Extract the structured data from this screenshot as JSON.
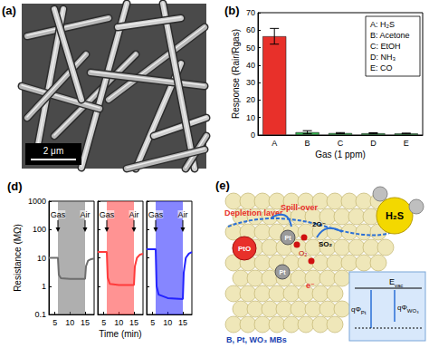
{
  "chart_data": [
    {
      "type": "bar",
      "title": "(b)",
      "categories": [
        "A",
        "B",
        "C",
        "D",
        "E"
      ],
      "values": [
        56.5,
        1.6,
        1.1,
        1.0,
        0.9
      ],
      "errors": [
        4.5,
        0.9,
        0.3,
        0.3,
        0.2
      ],
      "colors": [
        "#e8302a",
        "#2fb34a",
        "#2fb34a",
        "#2fb34a",
        "#2fb34a"
      ],
      "x_label": "Gas (1 ppm)",
      "y_label": "Response (Rair/Rgas)",
      "ylim": [
        0,
        70
      ],
      "yticks": [
        0,
        10,
        20,
        30,
        40,
        50,
        60,
        70
      ],
      "annotations": [
        "A: H₂S",
        "B: Acetone",
        "C: EtOH",
        "D: NH₃",
        "E: CO"
      ]
    },
    {
      "type": "line",
      "title": "(d)",
      "x_label": "Time (min)",
      "y_label": "Resistance (MΩ)",
      "log": "y",
      "xlim": [
        3,
        18
      ],
      "xticks": [
        5,
        10,
        15
      ],
      "ylim": [
        0.1,
        1000
      ],
      "yticks": [
        0.1,
        1,
        10,
        100,
        1000
      ],
      "annotations": [
        "Gas",
        "Air"
      ],
      "series": [
        {
          "color": "#6e6e6e",
          "gas_interval": [
            6,
            15
          ],
          "x": [
            3,
            5,
            6,
            6.3,
            7,
            10,
            15,
            15.3,
            16,
            17,
            18
          ],
          "values": [
            10,
            10,
            10,
            2.5,
            1.9,
            1.8,
            1.8,
            5,
            8,
            9,
            9.5
          ]
        },
        {
          "color": "#ff3b3b",
          "gas_interval": [
            6,
            15
          ],
          "x": [
            3,
            5,
            6,
            6.3,
            7,
            10,
            15,
            15.3,
            16,
            17,
            18
          ],
          "values": [
            16,
            16,
            16,
            2,
            1.2,
            1.1,
            1.1,
            5,
            10,
            13,
            14
          ]
        },
        {
          "color": "#2323ff",
          "gas_interval": [
            6,
            15
          ],
          "x": [
            3,
            5,
            6,
            6.3,
            7,
            10,
            15,
            15.3,
            16,
            17,
            18
          ],
          "values": [
            20,
            20,
            20,
            1,
            0.5,
            0.38,
            0.35,
            3,
            10,
            14,
            16
          ]
        }
      ]
    }
  ],
  "panels": {
    "a": {
      "label": "(a)",
      "scale_bar": "2 μm"
    },
    "e": {
      "label": "(e)",
      "depletion": "Depletion layer",
      "pto": "PtO",
      "spill": "Spill-over",
      "o_ion": "2O⁻",
      "pt": "Pt",
      "o2": "O₂",
      "so2": "SO₂",
      "electron": "e⁻",
      "gas": "H₂S",
      "evac": {
        "text": "E",
        "sub": "vac"
      },
      "phi_pt": {
        "text": "qΦ",
        "sub": "Pt"
      },
      "phi_wo3": {
        "text": "qΦ",
        "sub": "WO₃"
      },
      "material": "B, Pt, WO₃ MBs"
    }
  }
}
